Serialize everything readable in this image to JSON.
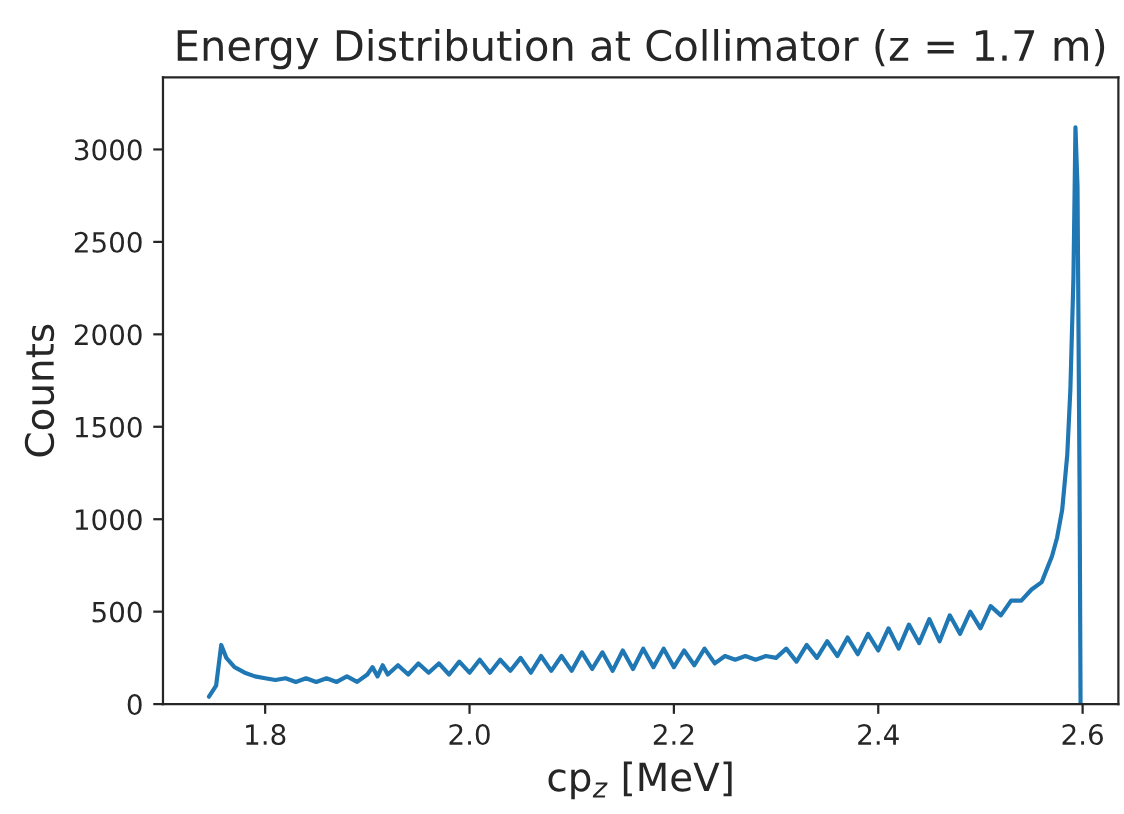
{
  "chart_data": {
    "type": "line",
    "title": "Energy Distribution at Collimator (z = 1.7 m)",
    "xlabel": "cp$_{z}$ [MeV]",
    "ylabel": "Counts",
    "series": [
      {
        "color": "#1f77b4",
        "x": [
          1.745,
          1.752,
          1.757,
          1.762,
          1.77,
          1.78,
          1.79,
          1.8,
          1.81,
          1.82,
          1.83,
          1.84,
          1.85,
          1.86,
          1.87,
          1.88,
          1.89,
          1.9,
          1.905,
          1.91,
          1.915,
          1.92,
          1.93,
          1.94,
          1.95,
          1.96,
          1.97,
          1.98,
          1.99,
          2.0,
          2.01,
          2.02,
          2.03,
          2.04,
          2.05,
          2.06,
          2.07,
          2.08,
          2.09,
          2.1,
          2.11,
          2.12,
          2.13,
          2.14,
          2.15,
          2.16,
          2.17,
          2.18,
          2.19,
          2.2,
          2.21,
          2.22,
          2.23,
          2.24,
          2.25,
          2.26,
          2.27,
          2.28,
          2.29,
          2.3,
          2.31,
          2.32,
          2.33,
          2.34,
          2.35,
          2.36,
          2.37,
          2.38,
          2.39,
          2.4,
          2.41,
          2.42,
          2.43,
          2.44,
          2.45,
          2.46,
          2.47,
          2.48,
          2.49,
          2.5,
          2.51,
          2.52,
          2.53,
          2.54,
          2.55,
          2.56,
          2.565,
          2.57,
          2.575,
          2.58,
          2.585,
          2.588,
          2.591,
          2.593,
          2.595,
          2.597,
          2.598
        ],
        "values": [
          40,
          100,
          320,
          250,
          200,
          170,
          150,
          140,
          130,
          140,
          120,
          140,
          120,
          140,
          120,
          150,
          120,
          160,
          200,
          150,
          210,
          160,
          210,
          160,
          220,
          170,
          220,
          160,
          230,
          170,
          240,
          170,
          240,
          180,
          250,
          170,
          260,
          180,
          260,
          180,
          280,
          190,
          280,
          180,
          290,
          190,
          300,
          200,
          300,
          200,
          290,
          210,
          300,
          220,
          260,
          240,
          260,
          240,
          260,
          250,
          300,
          230,
          320,
          250,
          340,
          260,
          360,
          270,
          380,
          290,
          410,
          300,
          430,
          330,
          460,
          340,
          480,
          380,
          500,
          410,
          530,
          480,
          560,
          560,
          620,
          660,
          730,
          800,
          900,
          1050,
          1350,
          1700,
          2300,
          3120,
          2800,
          1200,
          0
        ]
      }
    ],
    "xlim": [
      1.7,
      2.635
    ],
    "ylim": [
      0,
      3390
    ],
    "xticks": [
      1.8,
      {
        "value": 2.0,
        "label": "2.0"
      },
      2.2,
      2.4,
      2.6
    ],
    "yticks": [
      0,
      500,
      1000,
      1500,
      2000,
      2500,
      3000
    ],
    "grid": false,
    "legend": false
  }
}
